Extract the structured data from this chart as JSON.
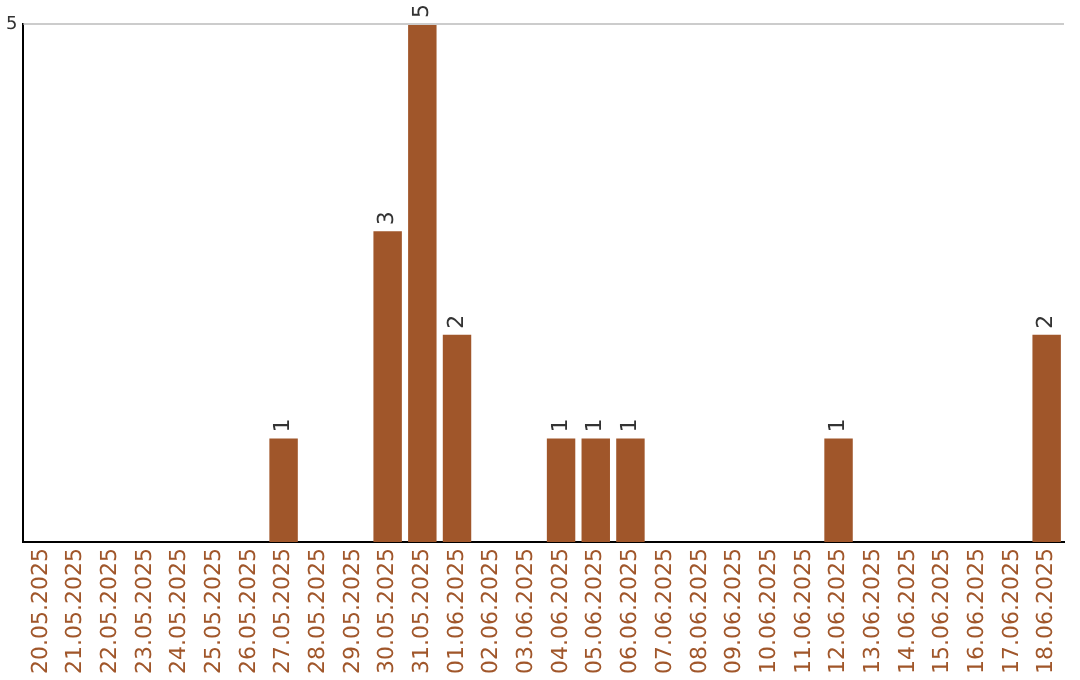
{
  "chart_data": {
    "type": "bar",
    "categories": [
      "20.05.2025",
      "21.05.2025",
      "22.05.2025",
      "23.05.2025",
      "24.05.2025",
      "25.05.2025",
      "26.05.2025",
      "27.05.2025",
      "28.05.2025",
      "29.05.2025",
      "30.05.2025",
      "31.05.2025",
      "01.06.2025",
      "02.06.2025",
      "03.06.2025",
      "04.06.2025",
      "05.06.2025",
      "06.06.2025",
      "07.06.2025",
      "08.06.2025",
      "09.06.2025",
      "10.06.2025",
      "11.06.2025",
      "12.06.2025",
      "13.06.2025",
      "14.06.2025",
      "15.06.2025",
      "16.06.2025",
      "17.06.2025",
      "18.06.2025"
    ],
    "values": [
      0,
      0,
      0,
      0,
      0,
      0,
      0,
      1,
      0,
      0,
      3,
      5,
      2,
      0,
      0,
      1,
      1,
      1,
      0,
      0,
      0,
      0,
      0,
      1,
      0,
      0,
      0,
      0,
      0,
      2
    ],
    "value_labels": [
      null,
      null,
      null,
      null,
      null,
      null,
      null,
      "1",
      null,
      null,
      "3",
      "5",
      "2",
      null,
      null,
      "1",
      "1",
      "1",
      null,
      null,
      null,
      null,
      null,
      "1",
      null,
      null,
      null,
      null,
      null,
      "2"
    ],
    "color": "#a0562a",
    "ylim": [
      0,
      5
    ],
    "yticks": [
      5
    ],
    "ref_lines": [
      {
        "axis": "y",
        "value": 5,
        "color": "#cccccc"
      }
    ],
    "legend": false
  }
}
